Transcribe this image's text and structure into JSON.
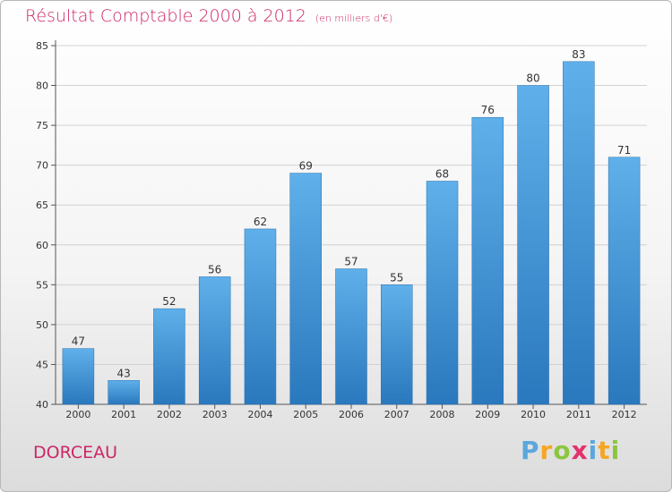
{
  "chart_data": {
    "type": "bar",
    "title": "Résultat Comptable 2000 à 2012",
    "subtitle": "(en milliers d'€)",
    "categories": [
      "2000",
      "2001",
      "2002",
      "2003",
      "2004",
      "2005",
      "2006",
      "2007",
      "2008",
      "2009",
      "2010",
      "2011",
      "2012"
    ],
    "values": [
      47,
      43,
      52,
      56,
      62,
      69,
      57,
      55,
      68,
      76,
      80,
      83,
      71
    ],
    "ylim": [
      40,
      85
    ],
    "yticks": [
      40,
      45,
      50,
      55,
      60,
      65,
      70,
      75,
      80,
      85
    ],
    "xlabel": "",
    "ylabel": "",
    "grid": true,
    "bar_color": "#3d8fd4"
  },
  "footer": {
    "place": "DORCEAU",
    "brand": [
      "P",
      "r",
      "o",
      "x",
      "i",
      "t",
      "i"
    ]
  }
}
